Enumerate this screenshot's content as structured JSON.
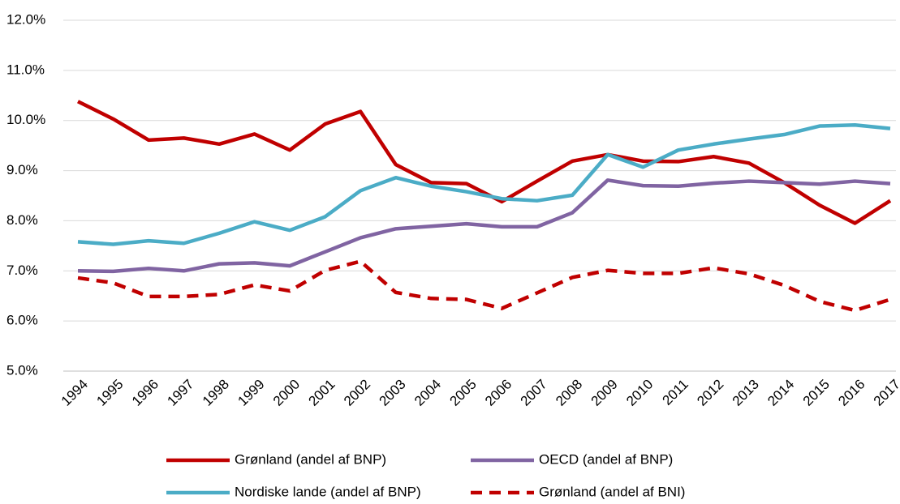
{
  "chart_data": {
    "type": "line",
    "categories": [
      "1994",
      "1995",
      "1996",
      "1997",
      "1998",
      "1999",
      "2000",
      "2001",
      "2002",
      "2003",
      "2004",
      "2005",
      "2006",
      "2007",
      "2008",
      "2009",
      "2010",
      "2011",
      "2012",
      "2013",
      "2014",
      "2015",
      "2016",
      "2017"
    ],
    "series": [
      {
        "name": "Grønland (andel af BNP)",
        "color": "#c00000",
        "dashed": false,
        "values": [
          10.38,
          10.03,
          9.61,
          9.65,
          9.53,
          9.73,
          9.41,
          9.93,
          10.18,
          9.12,
          8.76,
          8.74,
          8.38,
          8.79,
          9.19,
          9.32,
          9.19,
          9.18,
          9.28,
          9.15,
          8.76,
          8.31,
          7.95,
          8.4
        ]
      },
      {
        "name": "OECD (andel af BNP)",
        "color": "#8064a2",
        "dashed": false,
        "values": [
          7.0,
          6.99,
          7.05,
          7.0,
          7.14,
          7.16,
          7.1,
          7.38,
          7.66,
          7.84,
          7.89,
          7.94,
          7.88,
          7.88,
          8.16,
          8.81,
          8.7,
          8.69,
          8.75,
          8.79,
          8.76,
          8.73,
          8.79,
          8.74
        ]
      },
      {
        "name": "Nordiske lande (andel af BNP)",
        "color": "#4bacc6",
        "dashed": false,
        "values": [
          7.58,
          7.53,
          7.6,
          7.55,
          7.75,
          7.98,
          7.81,
          8.08,
          8.6,
          8.86,
          8.69,
          8.58,
          8.44,
          8.4,
          8.51,
          9.32,
          9.07,
          9.41,
          9.53,
          9.63,
          9.72,
          9.89,
          9.91,
          9.84
        ]
      },
      {
        "name": "Grønland (andel af BNI)",
        "color": "#c00000",
        "dashed": true,
        "values": [
          6.86,
          6.76,
          6.49,
          6.49,
          6.53,
          6.72,
          6.6,
          7.01,
          7.19,
          6.57,
          6.45,
          6.43,
          6.25,
          6.56,
          6.87,
          7.01,
          6.95,
          6.95,
          7.06,
          6.94,
          6.71,
          6.39,
          6.21,
          6.43
        ]
      }
    ],
    "ylim": [
      5,
      12
    ],
    "yticks": [
      {
        "value": 5,
        "label": "5.0%"
      },
      {
        "value": 6,
        "label": "6.0%"
      },
      {
        "value": 7,
        "label": "7.0%"
      },
      {
        "value": 8,
        "label": "8.0%"
      },
      {
        "value": 9,
        "label": "9.0%"
      },
      {
        "value": 10,
        "label": "10.0%"
      },
      {
        "value": 11,
        "label": "11.0%"
      },
      {
        "value": 12,
        "label": "12.0%"
      }
    ],
    "grid": true
  }
}
